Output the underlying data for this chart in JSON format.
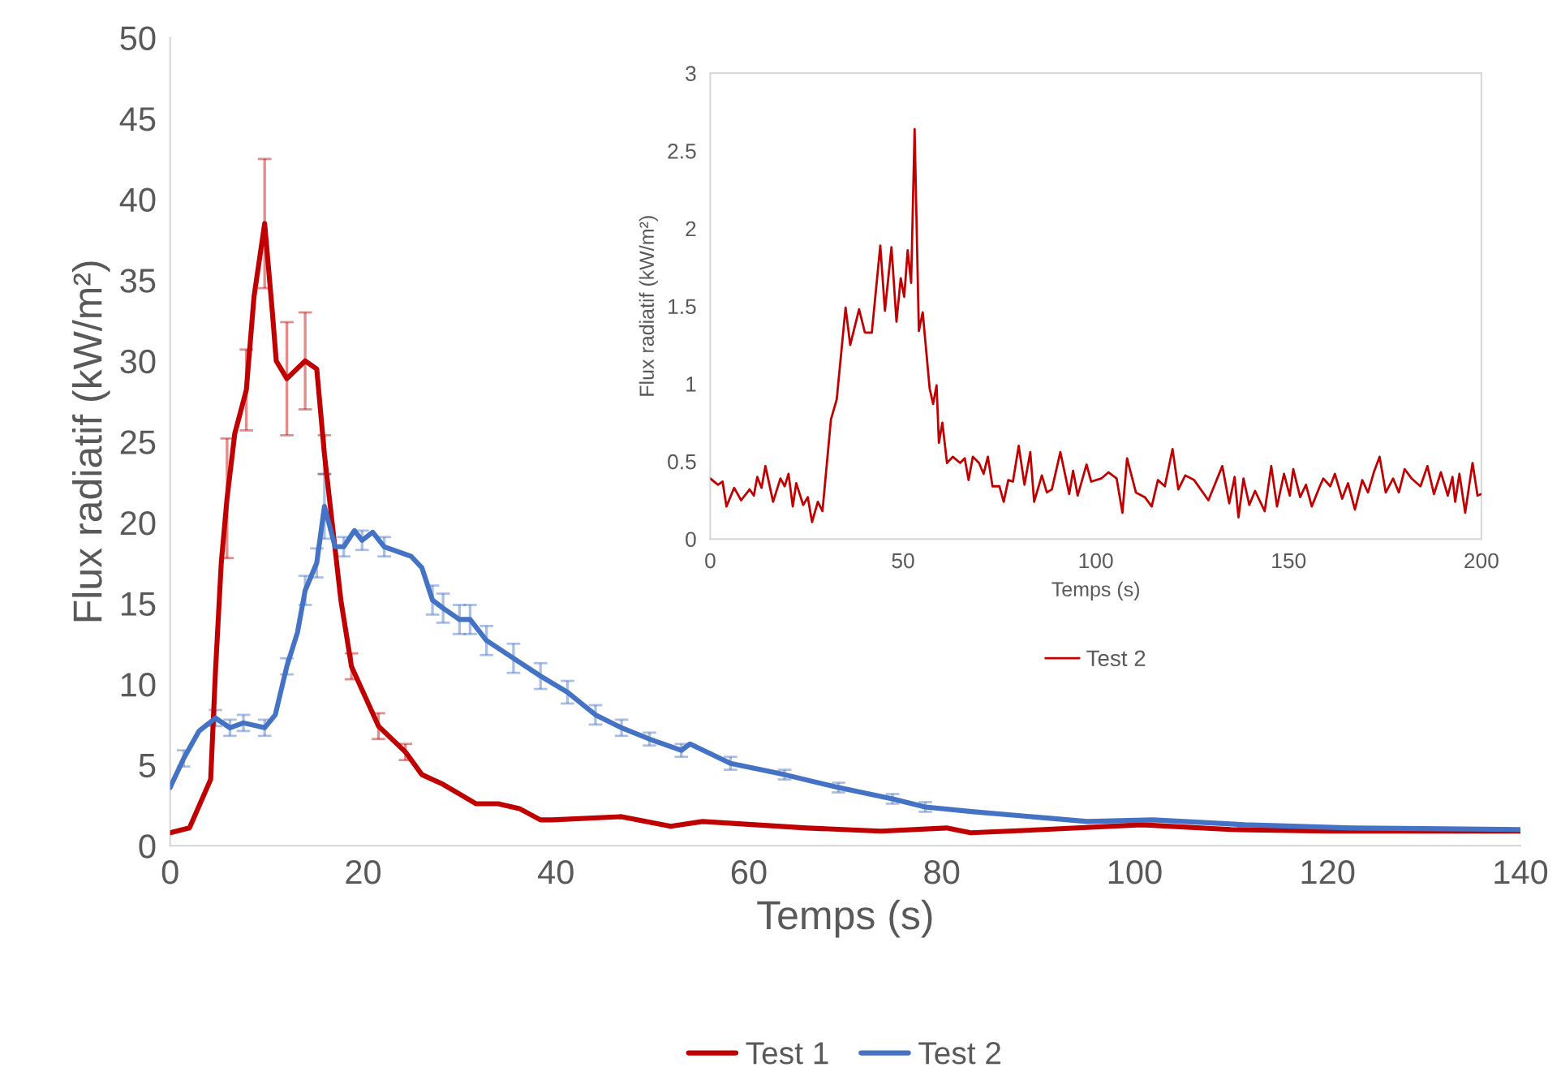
{
  "chart_data": [
    {
      "type": "line",
      "xlabel": "Temps (s)",
      "ylabel": "Flux radiatif (kW/m²)",
      "xlim": [
        0,
        140
      ],
      "ylim": [
        0,
        50
      ],
      "xticks": [
        0,
        20,
        40,
        60,
        80,
        100,
        120,
        140
      ],
      "yticks": [
        0,
        5,
        10,
        15,
        20,
        25,
        30,
        35,
        40,
        45,
        50
      ],
      "grid": false,
      "legend": "bottom",
      "marker": "none",
      "line_style": "solid",
      "series": [
        {
          "name": "Test 1",
          "color": "#c00000",
          "x": [
            0,
            2,
            4.2,
            4.7,
            5.3,
            5.9,
            6.7,
            7.9,
            8.7,
            9.8,
            10.6,
            11,
            12.1,
            14,
            15.2,
            16,
            17.7,
            18.8,
            21.6,
            24.4,
            26.1,
            28.3,
            31.7,
            34,
            36.2,
            38.4,
            39.6,
            46.8,
            51.9,
            55.2,
            66,
            73.7,
            80.5,
            83,
            90.6,
            100.7,
            110,
            120,
            130,
            140
          ],
          "values": [
            0.8,
            1.1,
            4.1,
            10.8,
            17.5,
            21.5,
            25.5,
            28.2,
            34,
            38.5,
            33,
            30,
            28.9,
            30,
            29.5,
            24.2,
            15.2,
            11.1,
            7.4,
            5.8,
            4.4,
            3.8,
            2.6,
            2.6,
            2.3,
            1.6,
            1.6,
            1.8,
            1.2,
            1.5,
            1.1,
            0.9,
            1.1,
            0.8,
            1.0,
            1.3,
            1.0,
            0.9,
            0.9,
            0.9
          ],
          "errors": [
            null,
            null,
            null,
            null,
            null,
            3.7,
            null,
            2.5,
            null,
            4,
            null,
            null,
            3.5,
            3,
            null,
            1.2,
            null,
            0.8,
            0.8,
            0.5,
            null,
            null,
            null,
            null,
            null,
            null,
            null,
            null,
            null,
            null,
            null,
            null,
            null,
            null,
            null,
            null,
            null,
            null,
            null,
            null
          ]
        },
        {
          "name": "Test 2",
          "color": "#4472c4",
          "x": [
            0,
            1.4,
            3,
            4.7,
            6.2,
            7.6,
            9.8,
            10.9,
            12.1,
            13.2,
            14,
            15.2,
            16,
            17.1,
            18,
            19.1,
            19.9,
            21,
            22.2,
            25,
            26.1,
            27.2,
            28.3,
            30,
            31.1,
            32.8,
            35.6,
            38.4,
            41.2,
            44.1,
            46.8,
            49.7,
            53,
            53.9,
            58.1,
            63.7,
            69.3,
            74.9,
            78.3,
            83.3,
            91.2,
            95.1,
            101.9,
            111.4,
            122.6,
            140
          ],
          "values": [
            3.6,
            5.4,
            7.1,
            7.9,
            7.3,
            7.6,
            7.3,
            8.1,
            11.1,
            13.2,
            15.8,
            17.5,
            21,
            18.5,
            18.5,
            19.5,
            18.9,
            19.4,
            18.5,
            17.9,
            17.2,
            15.2,
            14.7,
            14,
            14,
            12.7,
            11.6,
            10.5,
            9.5,
            8.1,
            7.3,
            6.6,
            5.9,
            6.3,
            5.1,
            4.4,
            3.6,
            2.9,
            2.4,
            2.1,
            1.7,
            1.5,
            1.6,
            1.3,
            1.1,
            1.0
          ],
          "errors": [
            null,
            0.5,
            null,
            0.5,
            0.5,
            0.5,
            0.5,
            null,
            0.5,
            null,
            0.9,
            0.9,
            2,
            null,
            0.6,
            null,
            0.6,
            null,
            0.6,
            null,
            null,
            0.9,
            0.9,
            0.9,
            0.9,
            0.9,
            0.9,
            0.8,
            0.7,
            0.6,
            0.5,
            0.4,
            0.4,
            null,
            0.4,
            0.3,
            0.3,
            0.3,
            0.3,
            null,
            null,
            null,
            null,
            null,
            null,
            null
          ]
        }
      ]
    },
    {
      "type": "line",
      "xlabel": "Temps (s)",
      "ylabel": "Flux radiatif (kW/m²)",
      "xlim": [
        0,
        200
      ],
      "ylim": [
        0,
        3
      ],
      "xticks": [
        0,
        50,
        100,
        150,
        200
      ],
      "yticks": [
        0,
        0.5,
        1,
        1.5,
        2,
        2.5,
        3
      ],
      "grid": false,
      "legend": "bottom",
      "marker": "none",
      "line_style": "solid",
      "series": [
        {
          "name": "Test 2",
          "color": "#c00000",
          "x": [
            0,
            2,
            3.2,
            4.2,
            6.2,
            8,
            10.2,
            11.3,
            12.2,
            13.3,
            14.3,
            16.3,
            18.2,
            19.3,
            20.3,
            21.4,
            22.3,
            24.1,
            25.3,
            26.4,
            27.9,
            29.1,
            31.3,
            32.8,
            35.1,
            36.3,
            38.6,
            40.1,
            41.9,
            44.1,
            45.3,
            47,
            48.3,
            49.4,
            50.3,
            51.2,
            52.1,
            53,
            54.1,
            55.1,
            56.9,
            57.8,
            58.7,
            59.3,
            60.2,
            61.4,
            62.9,
            64.8,
            66,
            67,
            68.1,
            69.7,
            70.9,
            72,
            73.2,
            75,
            76.1,
            77.3,
            78.5,
            80,
            81.5,
            83,
            84,
            86,
            87.3,
            88.6,
            90.8,
            93.1,
            94.1,
            95.3,
            97.6,
            98.8,
            101.4,
            103.3,
            105.4,
            106.9,
            108.1,
            110.4,
            112.7,
            114.5,
            116.1,
            117.9,
            119.9,
            121.4,
            123.2,
            125.5,
            129.2,
            132.8,
            134.6,
            136,
            137,
            138.3,
            139.8,
            141.3,
            143.8,
            145.5,
            147,
            148.8,
            150.3,
            151.2,
            153,
            154.5,
            156,
            158.1,
            159,
            160.8,
            162,
            163.9,
            165.4,
            167.2,
            169.1,
            170.6,
            172.1,
            173.6,
            175.2,
            177.1,
            178.6,
            180.1,
            181.9,
            184.2,
            186,
            187.7,
            189.5,
            191.3,
            192.5,
            193.2,
            194.3,
            195.8,
            197.7,
            199,
            200
          ],
          "values": [
            0.39,
            0.35,
            0.37,
            0.21,
            0.33,
            0.25,
            0.32,
            0.28,
            0.4,
            0.33,
            0.47,
            0.24,
            0.39,
            0.34,
            0.42,
            0.21,
            0.36,
            0.22,
            0.27,
            0.11,
            0.24,
            0.18,
            0.77,
            0.9,
            1.49,
            1.25,
            1.48,
            1.33,
            1.33,
            1.89,
            1.47,
            1.88,
            1.4,
            1.68,
            1.56,
            1.86,
            1.65,
            2.64,
            1.34,
            1.46,
            0.97,
            0.87,
            0.99,
            0.62,
            0.75,
            0.49,
            0.53,
            0.49,
            0.52,
            0.38,
            0.53,
            0.49,
            0.42,
            0.53,
            0.34,
            0.34,
            0.24,
            0.38,
            0.37,
            0.6,
            0.35,
            0.56,
            0.24,
            0.41,
            0.3,
            0.32,
            0.56,
            0.29,
            0.44,
            0.28,
            0.48,
            0.37,
            0.39,
            0.43,
            0.39,
            0.17,
            0.52,
            0.3,
            0.27,
            0.21,
            0.38,
            0.34,
            0.58,
            0.32,
            0.41,
            0.38,
            0.25,
            0.47,
            0.23,
            0.4,
            0.14,
            0.39,
            0.22,
            0.31,
            0.18,
            0.47,
            0.21,
            0.42,
            0.28,
            0.45,
            0.27,
            0.35,
            0.21,
            0.34,
            0.39,
            0.34,
            0.42,
            0.26,
            0.36,
            0.19,
            0.38,
            0.3,
            0.43,
            0.53,
            0.3,
            0.39,
            0.3,
            0.45,
            0.39,
            0.34,
            0.47,
            0.29,
            0.43,
            0.28,
            0.4,
            0.24,
            0.42,
            0.17,
            0.49,
            0.28,
            0.29
          ]
        }
      ]
    }
  ]
}
